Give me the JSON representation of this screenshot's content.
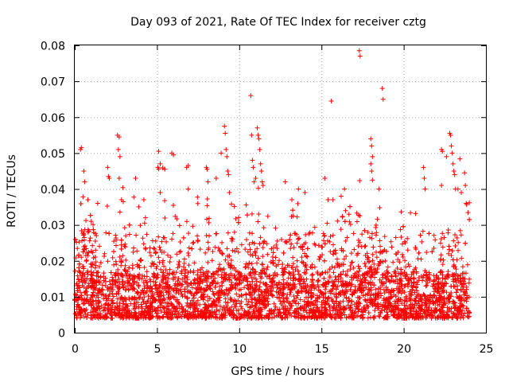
{
  "chart_data": {
    "type": "scatter",
    "title": "Day 093 of 2021, Rate Of TEC Index for receiver cztg",
    "xlabel": "GPS time / hours",
    "ylabel": "ROTI / TECUs",
    "xlim": [
      0,
      25
    ],
    "ylim": [
      0,
      0.08
    ],
    "xticks": [
      0,
      5,
      10,
      15,
      20,
      25
    ],
    "xtick_labels": [
      "0",
      "5",
      "10",
      "15",
      "20",
      "25"
    ],
    "yticks": [
      0,
      0.01,
      0.02,
      0.03,
      0.04,
      0.05,
      0.06,
      0.07,
      0.08
    ],
    "ytick_labels": [
      "0",
      "0.01",
      "0.02",
      "0.03",
      "0.04",
      "0.05",
      "0.06",
      "0.07",
      "0.08"
    ],
    "grid": true,
    "marker": "+",
    "color": "#ff0000",
    "series": [
      {
        "name": "ROTI",
        "description_points": [
          [
            0.35,
            0.051
          ],
          [
            0.4,
            0.0515
          ],
          [
            0.55,
            0.045
          ],
          [
            0.6,
            0.042
          ],
          [
            0.8,
            0.037
          ],
          [
            1.0,
            0.031
          ],
          [
            2.0,
            0.046
          ],
          [
            2.05,
            0.0435
          ],
          [
            2.1,
            0.043
          ],
          [
            2.6,
            0.055
          ],
          [
            2.7,
            0.0545
          ],
          [
            2.65,
            0.051
          ],
          [
            2.75,
            0.049
          ],
          [
            2.7,
            0.043
          ],
          [
            3.7,
            0.043
          ],
          [
            4.2,
            0.037
          ],
          [
            4.3,
            0.032
          ],
          [
            5.1,
            0.0505
          ],
          [
            5.2,
            0.047
          ],
          [
            5.05,
            0.046
          ],
          [
            5.2,
            0.039
          ],
          [
            5.9,
            0.05
          ],
          [
            6.0,
            0.0495
          ],
          [
            6.8,
            0.046
          ],
          [
            6.9,
            0.0465
          ],
          [
            6.9,
            0.04
          ],
          [
            8.0,
            0.046
          ],
          [
            8.05,
            0.0455
          ],
          [
            8.1,
            0.042
          ],
          [
            8.6,
            0.043
          ],
          [
            8.9,
            0.05
          ],
          [
            9.1,
            0.0575
          ],
          [
            9.15,
            0.0555
          ],
          [
            9.2,
            0.051
          ],
          [
            9.25,
            0.049
          ],
          [
            9.3,
            0.045
          ],
          [
            9.35,
            0.044
          ],
          [
            9.4,
            0.039
          ],
          [
            10.7,
            0.066
          ],
          [
            10.75,
            0.055
          ],
          [
            10.8,
            0.048
          ],
          [
            10.85,
            0.046
          ],
          [
            10.9,
            0.042
          ],
          [
            11.0,
            0.043
          ],
          [
            11.1,
            0.057
          ],
          [
            11.15,
            0.055
          ],
          [
            11.2,
            0.054
          ],
          [
            11.25,
            0.051
          ],
          [
            11.3,
            0.047
          ],
          [
            11.35,
            0.045
          ],
          [
            11.4,
            0.042
          ],
          [
            11.45,
            0.041
          ],
          [
            12.8,
            0.042
          ],
          [
            13.2,
            0.037
          ],
          [
            13.6,
            0.04
          ],
          [
            14.0,
            0.039
          ],
          [
            15.2,
            0.043
          ],
          [
            15.4,
            0.037
          ],
          [
            15.6,
            0.0645
          ],
          [
            15.7,
            0.037
          ],
          [
            16.2,
            0.038
          ],
          [
            16.4,
            0.04
          ],
          [
            17.3,
            0.0785
          ],
          [
            17.35,
            0.077
          ],
          [
            18.0,
            0.054
          ],
          [
            18.05,
            0.052
          ],
          [
            18.1,
            0.049
          ],
          [
            18.0,
            0.047
          ],
          [
            18.05,
            0.045
          ],
          [
            18.1,
            0.0425
          ],
          [
            18.7,
            0.068
          ],
          [
            18.75,
            0.065
          ],
          [
            18.5,
            0.04
          ],
          [
            21.2,
            0.046
          ],
          [
            21.25,
            0.043
          ],
          [
            21.3,
            0.04
          ],
          [
            22.3,
            0.051
          ],
          [
            22.35,
            0.0505
          ],
          [
            22.3,
            0.041
          ],
          [
            22.6,
            0.049
          ],
          [
            22.8,
            0.0555
          ],
          [
            22.85,
            0.055
          ],
          [
            22.9,
            0.052
          ],
          [
            22.95,
            0.05
          ],
          [
            23.0,
            0.047
          ],
          [
            23.05,
            0.045
          ],
          [
            23.1,
            0.044
          ],
          [
            23.15,
            0.04
          ],
          [
            23.3,
            0.04
          ],
          [
            23.5,
            0.039
          ],
          [
            23.7,
            0.0445
          ],
          [
            23.75,
            0.041
          ],
          [
            23.8,
            0.036
          ]
        ]
      }
    ]
  }
}
